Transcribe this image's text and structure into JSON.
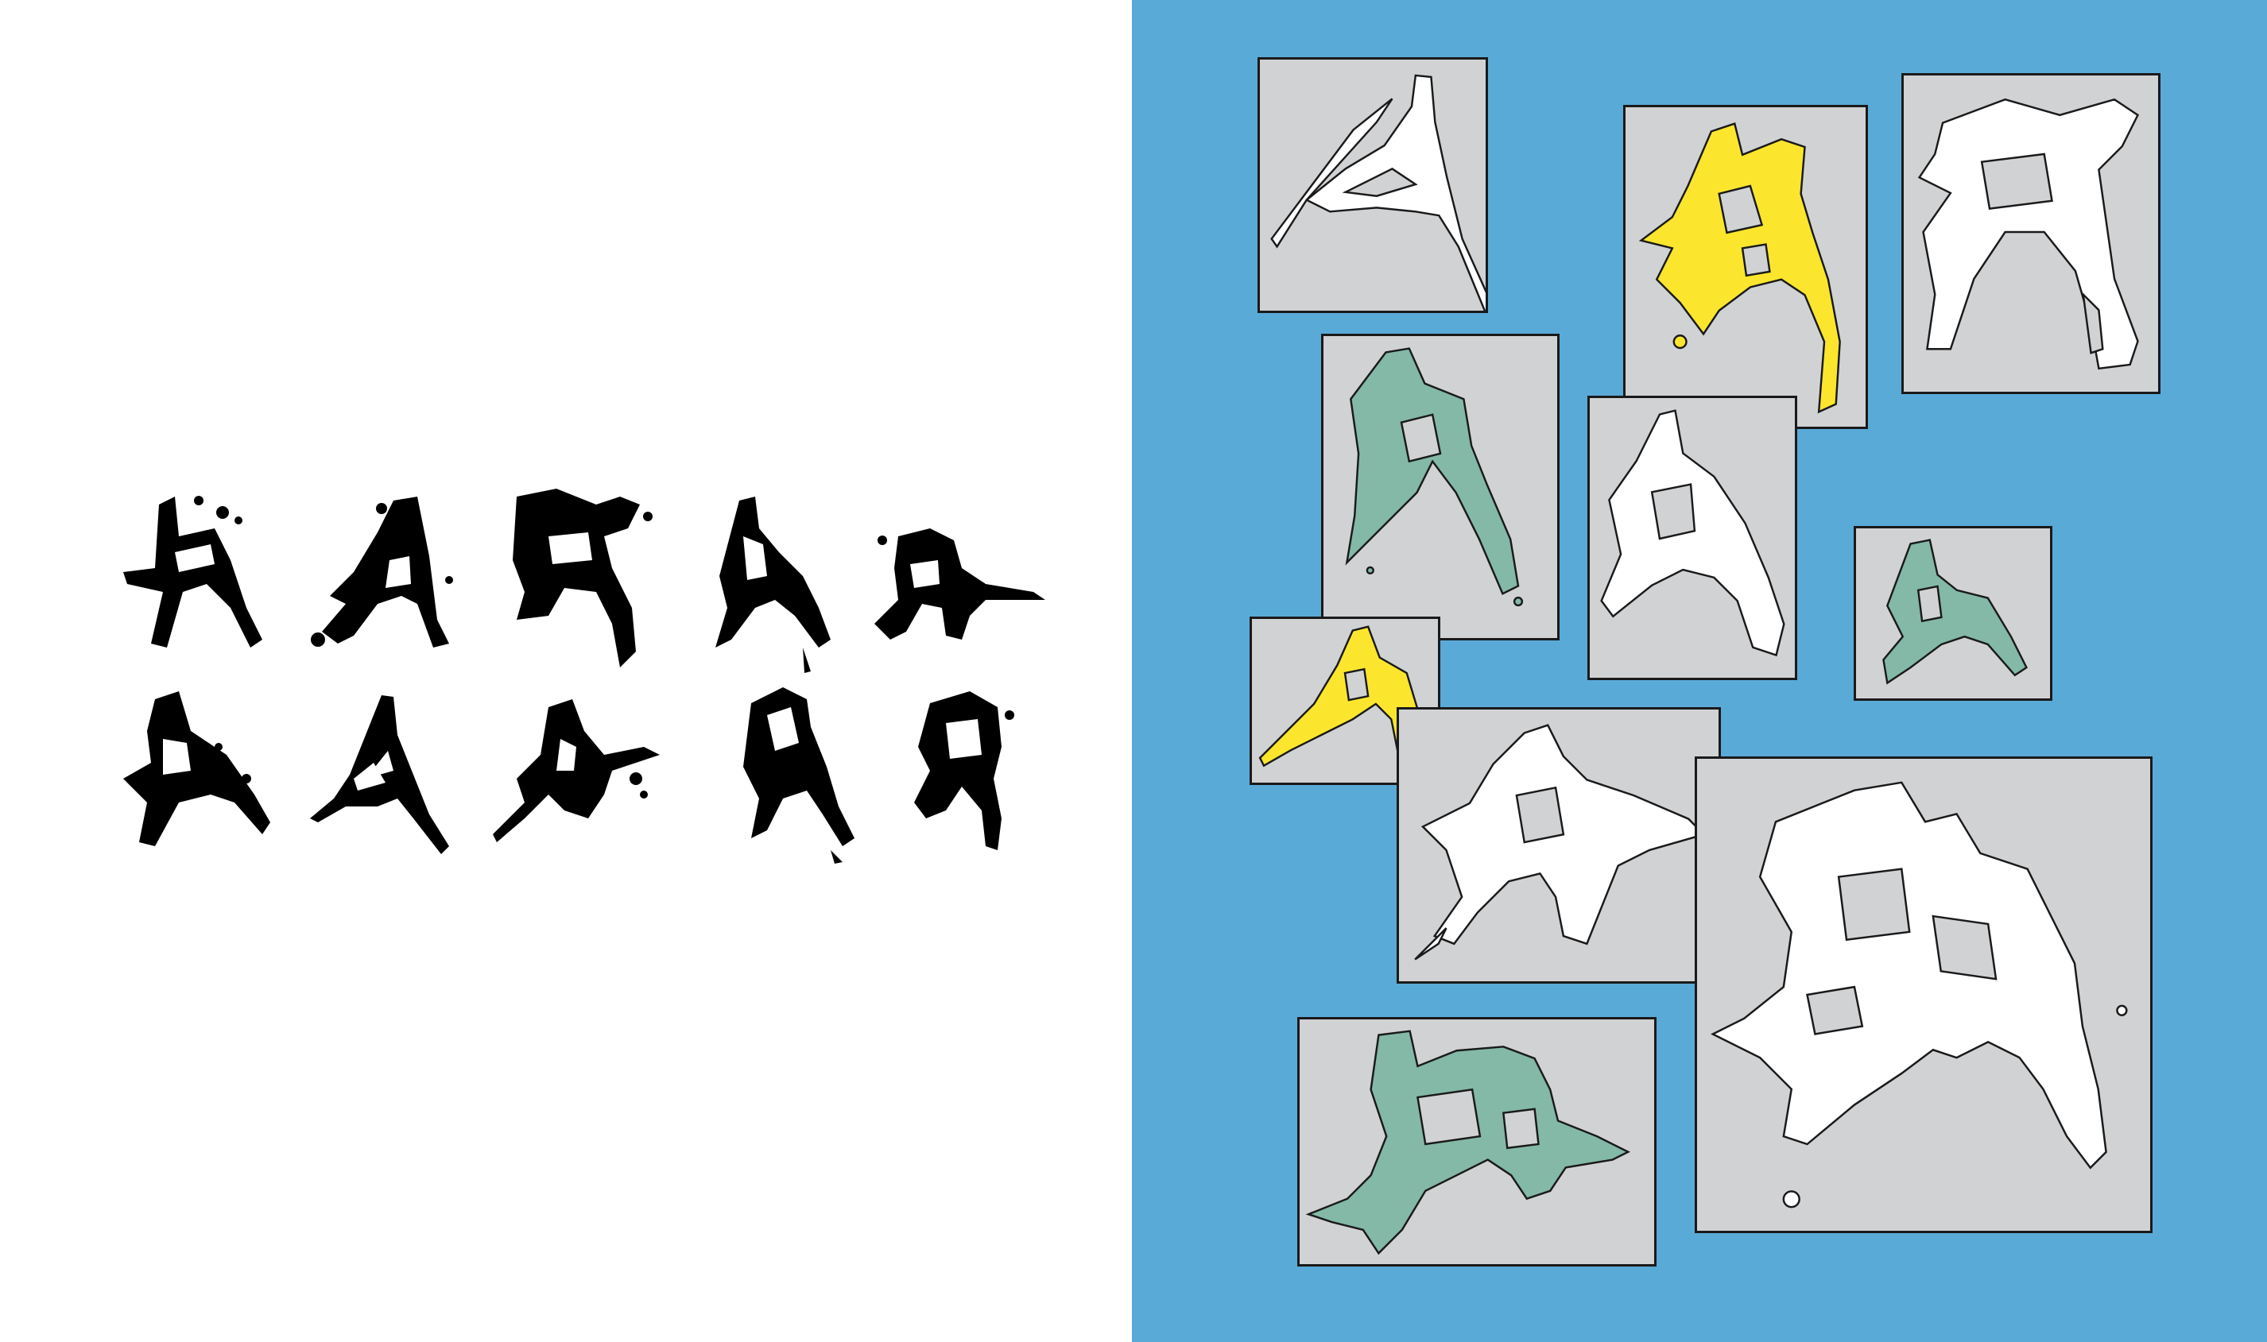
{
  "colors": {
    "panel_background": "#5aaad8",
    "frame_fill": "#d1d2d4",
    "frame_border": "#1a1a1a",
    "ink": "#000000",
    "yellow": "#fbe62d",
    "green": "#83b9a6",
    "white": "#ffffff"
  },
  "icons": [
    "splatter-letter-a-glyph"
  ],
  "left_glyph_rows": [
    {
      "row": 1,
      "glyph_count": 5
    },
    {
      "row": 2,
      "glyph_count": 5
    }
  ],
  "right_frames": [
    {
      "id": 1,
      "fill": "white"
    },
    {
      "id": 2,
      "fill": "yellow"
    },
    {
      "id": 3,
      "fill": "white"
    },
    {
      "id": 4,
      "fill": "green"
    },
    {
      "id": 5,
      "fill": "white"
    },
    {
      "id": 6,
      "fill": "green"
    },
    {
      "id": 7,
      "fill": "yellow"
    },
    {
      "id": 8,
      "fill": "white"
    },
    {
      "id": 9,
      "fill": "white"
    },
    {
      "id": 10,
      "fill": "green"
    }
  ]
}
